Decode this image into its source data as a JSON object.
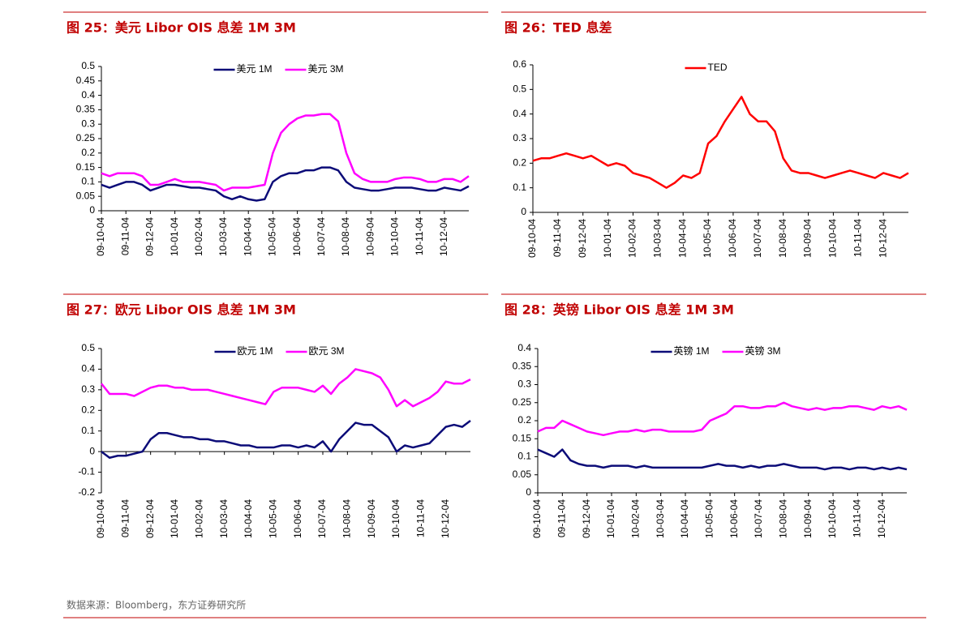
{
  "chart_data": [
    {
      "type": "line",
      "title": "图 25：美元 Libor OIS 息差 1M 3M",
      "legend": "upper center",
      "grid": false,
      "categories": [
        "09-10-04",
        null,
        null,
        "09-11-04",
        null,
        null,
        "09-12-04",
        null,
        null,
        "10-01-04",
        null,
        null,
        "10-02-04",
        null,
        null,
        "10-03-04",
        null,
        null,
        "10-04-04",
        null,
        null,
        "10-05-04",
        null,
        null,
        "10-06-04",
        null,
        null,
        "10-07-04",
        null,
        null,
        "10-08-04",
        null,
        null,
        "10-09-04",
        null,
        null,
        "10-10-04",
        null,
        null,
        "10-11-04",
        null,
        null,
        "10-12-04",
        null,
        null,
        null
      ],
      "ylim": [
        0,
        0.5
      ],
      "yticks": [
        0,
        0.05,
        0.1,
        0.15,
        0.2,
        0.25,
        0.3,
        0.35,
        0.4,
        0.45,
        0.5
      ],
      "series": [
        {
          "name": "美元 1M",
          "color": "#0c0c78",
          "values": [
            0.09,
            0.08,
            0.09,
            0.1,
            0.1,
            0.09,
            0.07,
            0.08,
            0.09,
            0.09,
            0.085,
            0.08,
            0.08,
            0.075,
            0.07,
            0.05,
            0.04,
            0.05,
            0.04,
            0.035,
            0.04,
            0.1,
            0.12,
            0.13,
            0.13,
            0.14,
            0.14,
            0.15,
            0.15,
            0.14,
            0.1,
            0.08,
            0.075,
            0.07,
            0.07,
            0.075,
            0.08,
            0.08,
            0.08,
            0.075,
            0.07,
            0.07,
            0.08,
            0.075,
            0.07,
            0.085
          ]
        },
        {
          "name": "美元 3M",
          "color": "#ff00ff",
          "values": [
            0.13,
            0.12,
            0.13,
            0.13,
            0.13,
            0.12,
            0.09,
            0.09,
            0.1,
            0.11,
            0.1,
            0.1,
            0.1,
            0.095,
            0.09,
            0.07,
            0.08,
            0.08,
            0.08,
            0.085,
            0.09,
            0.2,
            0.27,
            0.3,
            0.32,
            0.33,
            0.33,
            0.335,
            0.335,
            0.31,
            0.2,
            0.13,
            0.11,
            0.1,
            0.1,
            0.1,
            0.11,
            0.115,
            0.115,
            0.11,
            0.1,
            0.1,
            0.11,
            0.11,
            0.1,
            0.12
          ]
        }
      ]
    },
    {
      "type": "line",
      "title": "图 26：TED 息差",
      "legend": "upper center",
      "grid": false,
      "categories": [
        "09-10-04",
        null,
        null,
        "09-11-04",
        null,
        null,
        "09-12-04",
        null,
        null,
        "10-01-04",
        null,
        null,
        "10-02-04",
        null,
        null,
        "10-03-04",
        null,
        null,
        "10-04-04",
        null,
        null,
        "10-05-04",
        null,
        null,
        "10-06-04",
        null,
        null,
        "10-07-04",
        null,
        null,
        "10-08-04",
        null,
        null,
        "10-09-04",
        null,
        null,
        "10-10-04",
        null,
        null,
        "10-11-04",
        null,
        null,
        "10-12-04",
        null,
        null,
        null
      ],
      "ylim": [
        0,
        0.6
      ],
      "yticks": [
        0,
        0.1,
        0.2,
        0.3,
        0.4,
        0.5,
        0.6
      ],
      "series": [
        {
          "name": "TED",
          "color": "#ff0000",
          "values": [
            0.21,
            0.22,
            0.22,
            0.23,
            0.24,
            0.23,
            0.22,
            0.23,
            0.21,
            0.19,
            0.2,
            0.19,
            0.16,
            0.15,
            0.14,
            0.12,
            0.1,
            0.12,
            0.15,
            0.14,
            0.16,
            0.28,
            0.31,
            0.37,
            0.42,
            0.47,
            0.4,
            0.37,
            0.37,
            0.33,
            0.22,
            0.17,
            0.16,
            0.16,
            0.15,
            0.14,
            0.15,
            0.16,
            0.17,
            0.16,
            0.15,
            0.14,
            0.16,
            0.15,
            0.14,
            0.16
          ]
        }
      ]
    },
    {
      "type": "line",
      "title": "图 27：欧元 Libor OIS 息差 1M 3M",
      "legend": "upper center",
      "grid": false,
      "categories": [
        "09-10-04",
        null,
        null,
        "09-11-04",
        null,
        null,
        "09-12-04",
        null,
        null,
        "10-01-04",
        null,
        null,
        "10-02-04",
        null,
        null,
        "10-03-04",
        null,
        null,
        "10-04-04",
        null,
        null,
        "10-05-04",
        null,
        null,
        "10-06-04",
        null,
        null,
        "10-07-04",
        null,
        null,
        "10-08-04",
        null,
        null,
        "10-09-04",
        null,
        null,
        "10-10-04",
        null,
        null,
        "10-11-04",
        null,
        null,
        "10-12-04",
        null,
        null,
        null
      ],
      "ylim": [
        -0.2,
        0.5
      ],
      "yticks": [
        -0.2,
        -0.1,
        0,
        0.1,
        0.2,
        0.3,
        0.4,
        0.5
      ],
      "series": [
        {
          "name": "欧元 1M",
          "color": "#0c0c78",
          "values": [
            0.0,
            -0.03,
            -0.02,
            -0.02,
            -0.01,
            0.0,
            0.06,
            0.09,
            0.09,
            0.08,
            0.07,
            0.07,
            0.06,
            0.06,
            0.05,
            0.05,
            0.04,
            0.03,
            0.03,
            0.02,
            0.02,
            0.02,
            0.03,
            0.03,
            0.02,
            0.03,
            0.02,
            0.05,
            0.0,
            0.06,
            0.1,
            0.14,
            0.13,
            0.13,
            0.1,
            0.07,
            0.0,
            0.03,
            0.02,
            0.03,
            0.04,
            0.08,
            0.12,
            0.13,
            0.12,
            0.15
          ]
        },
        {
          "name": "欧元 3M",
          "color": "#ff00ff",
          "values": [
            0.33,
            0.28,
            0.28,
            0.28,
            0.27,
            0.29,
            0.31,
            0.32,
            0.32,
            0.31,
            0.31,
            0.3,
            0.3,
            0.3,
            0.29,
            0.28,
            0.27,
            0.26,
            0.25,
            0.24,
            0.23,
            0.29,
            0.31,
            0.31,
            0.31,
            0.3,
            0.29,
            0.32,
            0.28,
            0.33,
            0.36,
            0.4,
            0.39,
            0.38,
            0.36,
            0.3,
            0.22,
            0.25,
            0.22,
            0.24,
            0.26,
            0.29,
            0.34,
            0.33,
            0.33,
            0.35
          ]
        }
      ]
    },
    {
      "type": "line",
      "title": "图 28：英镑 Libor OIS 息差 1M 3M",
      "legend": "upper center",
      "grid": false,
      "categories": [
        "09-10-04",
        null,
        null,
        "09-11-04",
        null,
        null,
        "09-12-04",
        null,
        null,
        "10-01-04",
        null,
        null,
        "10-02-04",
        null,
        null,
        "10-03-04",
        null,
        null,
        "10-04-04",
        null,
        null,
        "10-05-04",
        null,
        null,
        "10-06-04",
        null,
        null,
        "10-07-04",
        null,
        null,
        "10-08-04",
        null,
        null,
        "10-09-04",
        null,
        null,
        "10-10-04",
        null,
        null,
        "10-11-04",
        null,
        null,
        "10-12-04",
        null,
        null,
        null
      ],
      "ylim": [
        0,
        0.4
      ],
      "yticks": [
        0,
        0.05,
        0.1,
        0.15,
        0.2,
        0.25,
        0.3,
        0.35,
        0.4
      ],
      "series": [
        {
          "name": "英镑 1M",
          "color": "#0c0c78",
          "values": [
            0.12,
            0.11,
            0.1,
            0.12,
            0.09,
            0.08,
            0.075,
            0.075,
            0.07,
            0.075,
            0.075,
            0.075,
            0.07,
            0.075,
            0.07,
            0.07,
            0.07,
            0.07,
            0.07,
            0.07,
            0.07,
            0.075,
            0.08,
            0.075,
            0.075,
            0.07,
            0.075,
            0.07,
            0.075,
            0.075,
            0.08,
            0.075,
            0.07,
            0.07,
            0.07,
            0.065,
            0.07,
            0.07,
            0.065,
            0.07,
            0.07,
            0.065,
            0.07,
            0.065,
            0.07,
            0.065
          ]
        },
        {
          "name": "英镑 3M",
          "color": "#ff00ff",
          "values": [
            0.17,
            0.18,
            0.18,
            0.2,
            0.19,
            0.18,
            0.17,
            0.165,
            0.16,
            0.165,
            0.17,
            0.17,
            0.175,
            0.17,
            0.175,
            0.175,
            0.17,
            0.17,
            0.17,
            0.17,
            0.175,
            0.2,
            0.21,
            0.22,
            0.24,
            0.24,
            0.235,
            0.235,
            0.24,
            0.24,
            0.25,
            0.24,
            0.235,
            0.23,
            0.235,
            0.23,
            0.235,
            0.235,
            0.24,
            0.24,
            0.235,
            0.23,
            0.24,
            0.235,
            0.24,
            0.23
          ]
        }
      ]
    }
  ],
  "source": "数据来源：Bloomberg，东方证券研究所"
}
